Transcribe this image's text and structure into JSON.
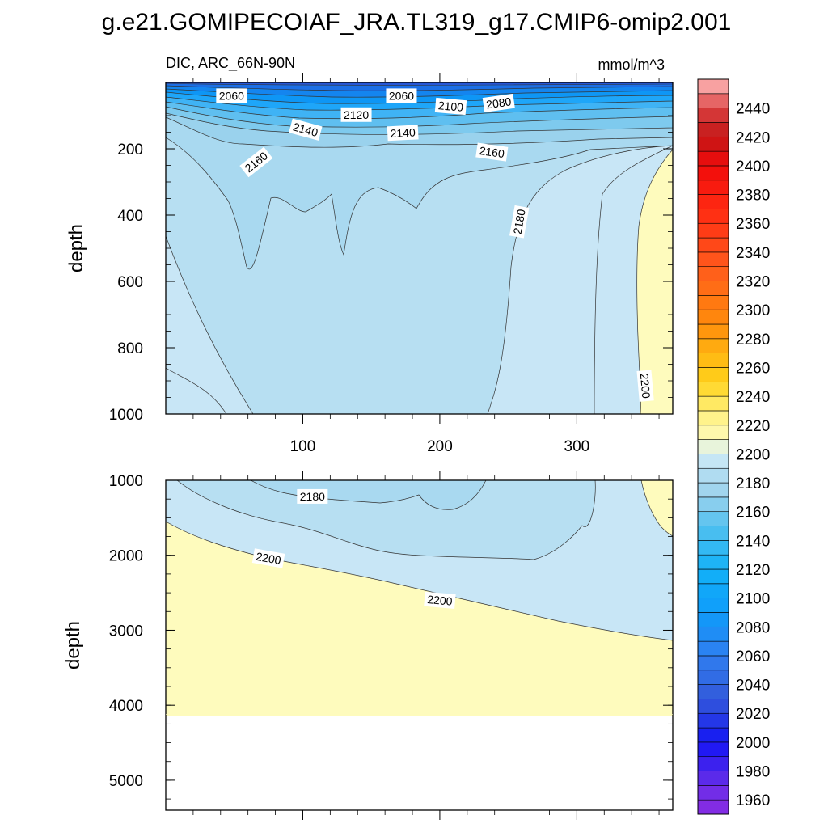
{
  "chart_data": {
    "type": "heatmap",
    "title": "g.e21.GOMIPECOIAF_JRA.TL319_g17.CMIP6-omip2.001",
    "variable_label": "DIC, ARC_66N-90N",
    "units_label": "mmol/m^3",
    "x_range": [
      0,
      370
    ],
    "x_ticks": [
      {
        "value": 100,
        "label": "100"
      },
      {
        "value": 200,
        "label": "200"
      },
      {
        "value": 300,
        "label": "300"
      }
    ],
    "panels": [
      {
        "name": "upper",
        "ylabel": "depth",
        "y_range": [
          0,
          1000
        ],
        "y_ticks": [
          {
            "value": 200,
            "label": "200"
          },
          {
            "value": 400,
            "label": "400"
          },
          {
            "value": 600,
            "label": "600"
          },
          {
            "value": 800,
            "label": "800"
          },
          {
            "value": 1000,
            "label": "1000"
          }
        ],
        "contour_labels": [
          {
            "x": 48,
            "y": 40,
            "text": "2060",
            "rot": 0
          },
          {
            "x": 172,
            "y": 40,
            "text": "2060",
            "rot": 0
          },
          {
            "x": 208,
            "y": 72,
            "text": "2100",
            "rot": 5
          },
          {
            "x": 243,
            "y": 62,
            "text": "2080",
            "rot": -8
          },
          {
            "x": 139,
            "y": 97,
            "text": "2120",
            "rot": 0
          },
          {
            "x": 102,
            "y": 142,
            "text": "2140",
            "rot": 15
          },
          {
            "x": 173,
            "y": 152,
            "text": "2140",
            "rot": -3
          },
          {
            "x": 238,
            "y": 210,
            "text": "2160",
            "rot": 8
          },
          {
            "x": 66,
            "y": 240,
            "text": "2160",
            "rot": -38
          },
          {
            "x": 258,
            "y": 420,
            "text": "2180",
            "rot": -80
          },
          {
            "x": 350,
            "y": 915,
            "text": "2200",
            "rot": 85
          }
        ]
      },
      {
        "name": "lower",
        "ylabel": "depth",
        "y_range": [
          1000,
          5400
        ],
        "y_ticks": [
          {
            "value": 1000,
            "label": "1000"
          },
          {
            "value": 2000,
            "label": "2000"
          },
          {
            "value": 3000,
            "label": "3000"
          },
          {
            "value": 4000,
            "label": "4000"
          },
          {
            "value": 5000,
            "label": "5000"
          }
        ],
        "seafloor_depth": 4120,
        "contour_labels": [
          {
            "x": 107,
            "y": 1215,
            "text": "2180",
            "rot": 0
          },
          {
            "x": 75,
            "y": 2040,
            "text": "2200",
            "rot": 10
          },
          {
            "x": 200,
            "y": 2600,
            "text": "2200",
            "rot": 5
          }
        ]
      }
    ],
    "colorbar": {
      "min": 1950,
      "max": 2460,
      "step": 10,
      "labels": [
        "2440",
        "2420",
        "2400",
        "2380",
        "2360",
        "2340",
        "2320",
        "2300",
        "2280",
        "2260",
        "2240",
        "2220",
        "2200",
        "2180",
        "2160",
        "2140",
        "2120",
        "2100",
        "2080",
        "2060",
        "2040",
        "2020",
        "2000",
        "1980",
        "1960"
      ]
    }
  }
}
